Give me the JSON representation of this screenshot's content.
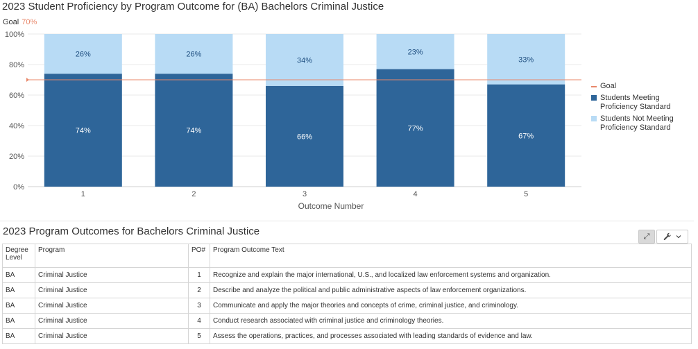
{
  "chart_data": {
    "type": "bar",
    "stacked": true,
    "title": "2023 Student Proficiency by Program Outcome for (BA) Bachelors Criminal Justice",
    "goal_label": "Goal",
    "goal_value_text": "70%",
    "goal": 70,
    "categories": [
      "1",
      "2",
      "3",
      "4",
      "5"
    ],
    "xlabel": "Outcome Number",
    "ylabel": "",
    "ylim": [
      0,
      100
    ],
    "yticks": [
      "0%",
      "20%",
      "40%",
      "60%",
      "80%",
      "100%"
    ],
    "series": [
      {
        "name": "Students Meeting Proficiency Standard",
        "values": [
          74,
          74,
          66,
          77,
          67
        ],
        "labels": [
          "74%",
          "74%",
          "66%",
          "77%",
          "67%"
        ],
        "color": "#2e6599"
      },
      {
        "name": "Students Not Meeting Proficiency Standard",
        "values": [
          26,
          26,
          34,
          23,
          33
        ],
        "labels": [
          "26%",
          "26%",
          "34%",
          "23%",
          "33%"
        ],
        "color": "#b8dbf5"
      }
    ],
    "legend": [
      "Goal",
      "Students Meeting Proficiency Standard",
      "Students Not Meeting Proficiency Standard"
    ],
    "legend_position": "right",
    "goal_color": "#e8876a",
    "grid": true
  },
  "table": {
    "title": "2023 Program Outcomes for Bachelors Criminal Justice",
    "headers": [
      "Degree Level",
      "Program",
      "PO#",
      "Program Outcome Text"
    ],
    "rows": [
      [
        "BA",
        "Criminal Justice",
        "1",
        "Recognize and explain the major international, U.S., and localized law enforcement systems and organization."
      ],
      [
        "BA",
        "Criminal Justice",
        "2",
        "Describe and analyze the political and public administrative aspects of law enforcement organizations."
      ],
      [
        "BA",
        "Criminal Justice",
        "3",
        "Communicate and apply the major theories and concepts of crime, criminal justice, and criminology."
      ],
      [
        "BA",
        "Criminal Justice",
        "4",
        "Conduct research associated with criminal justice and criminology theories."
      ],
      [
        "BA",
        "Criminal Justice",
        "5",
        "Assess the operations, practices, and processes associated with leading standards of evidence and law."
      ]
    ]
  },
  "icons": {
    "expand": "expand-icon",
    "tools": "wrench-icon",
    "dropdown": "chevron-down-icon"
  }
}
